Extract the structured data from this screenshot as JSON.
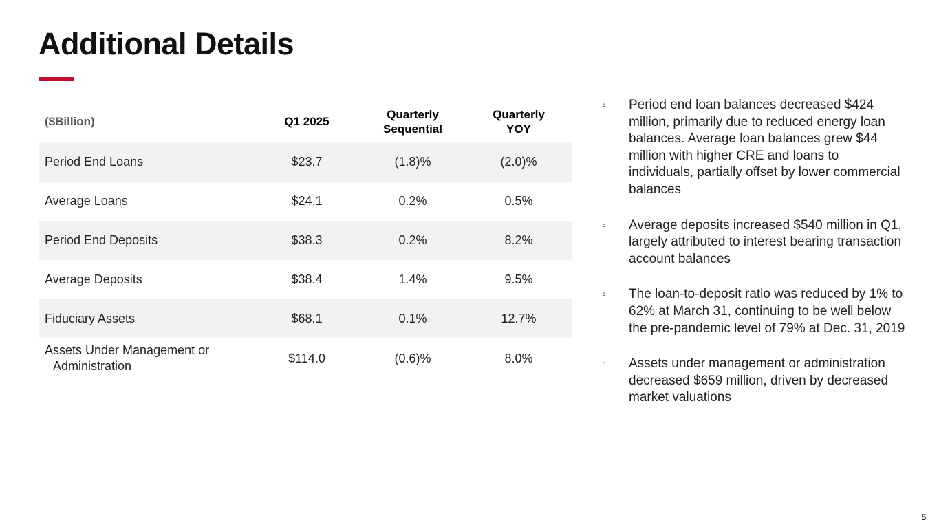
{
  "slide": {
    "title": "Additional Details",
    "page_number": "5"
  },
  "colors": {
    "accent_red": "#C00F31",
    "row_stripe": "#F2F2F2",
    "unit_header_gray": "#595959"
  },
  "table": {
    "header": {
      "unit_label": "($Billion)",
      "col_q1": "Q1 2025",
      "col_seq_line1": "Quarterly",
      "col_seq_line2": "Sequential",
      "col_yoy_line1": "Quarterly",
      "col_yoy_line2": "YOY"
    },
    "rows": [
      {
        "label": "Period End Loans",
        "q1_2025": "$23.7",
        "quarterly_sequential": "(1.8)%",
        "quarterly_yoy": "(2.0)%"
      },
      {
        "label": "Average Loans",
        "q1_2025": "$24.1",
        "quarterly_sequential": "0.2%",
        "quarterly_yoy": "0.5%"
      },
      {
        "label": "Period End Deposits",
        "q1_2025": "$38.3",
        "quarterly_sequential": "0.2%",
        "quarterly_yoy": "8.2%"
      },
      {
        "label": "Average Deposits",
        "q1_2025": "$38.4",
        "quarterly_sequential": "1.4%",
        "quarterly_yoy": "9.5%"
      },
      {
        "label": "Fiduciary Assets",
        "q1_2025": "$68.1",
        "quarterly_sequential": "0.1%",
        "quarterly_yoy": "12.7%"
      },
      {
        "label": "Assets Under Management or Administration",
        "q1_2025": "$114.0",
        "quarterly_sequential": "(0.6)%",
        "quarterly_yoy": "8.0%"
      }
    ]
  },
  "bullets": {
    "marker": "◦",
    "items": [
      "Period end loan balances decreased $424 million, primarily due to reduced energy loan balances. Average loan balances grew $44 million with higher CRE and loans to individuals, partially offset by lower commercial balances",
      "Average deposits increased $540 million in Q1, largely attributed to interest bearing transaction account balances",
      "The loan-to-deposit ratio was reduced by 1% to 62% at March 31, continuing to be well below the pre-pandemic level of 79% at Dec. 31, 2019",
      "Assets under management or administration decreased $659 million, driven by decreased market valuations"
    ]
  }
}
